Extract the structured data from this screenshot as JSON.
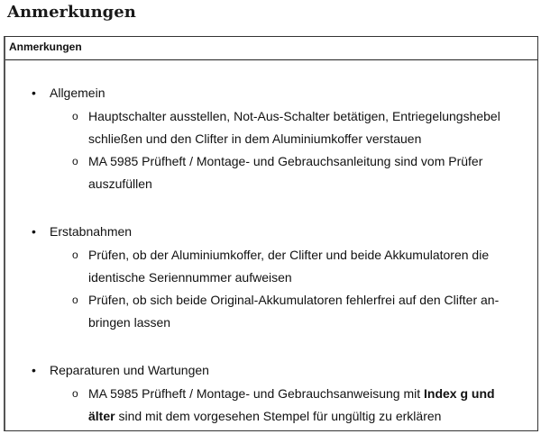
{
  "heading": "Anmerkungen",
  "table_header": "Anmerkungen",
  "sections": [
    {
      "label": "Allgemein",
      "items": [
        {
          "lines": [
            "Hauptschalter ausstellen, Not-Aus-Schalter betätigen, Entriegelungshebel",
            "schließen und den Clifter in dem Aluminiumkoffer verstauen"
          ]
        },
        {
          "lines": [
            "MA 5985 Prüfheft / Montage- und Gebrauchsanleitung sind vom Prüfer",
            "auszufüllen"
          ]
        }
      ]
    },
    {
      "label": "Erstabnahmen",
      "items": [
        {
          "lines": [
            "Prüfen, ob der Aluminiumkoffer, der Clifter und beide Akkumulatoren die",
            "identische Seriennummer aufweisen"
          ]
        },
        {
          "lines": [
            "Prüfen, ob sich beide Original-Akkumulatoren fehlerfrei auf den Clifter an-",
            "bringen lassen"
          ]
        }
      ]
    },
    {
      "label": "Reparaturen und Wartungen",
      "items": [
        {
          "line1_pre": "MA 5985 Prüfheft / Montage- und Gebrauchsanweisung mit ",
          "line1_bold": "Index g und",
          "line2_bold": "älter",
          "line2_post": " sind mit dem vorgesehen Stempel für ungültig zu erklären"
        }
      ]
    }
  ]
}
